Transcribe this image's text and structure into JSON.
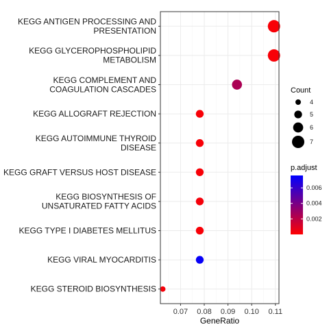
{
  "chart_data": {
    "type": "scatter",
    "xlabel": "GeneRatio",
    "xlim": [
      0.0615,
      0.1115
    ],
    "xticks": [
      "0.07",
      "0.08",
      "0.09",
      "0.10",
      "0.11"
    ],
    "xtick_values": [
      0.07,
      0.08,
      0.09,
      0.1,
      0.11
    ],
    "grid": true,
    "categories": [
      [
        "KEGG ANTIGEN PROCESSING AND",
        "PRESENTATION"
      ],
      [
        "KEGG GLYCEROPHOSPHOLIPID",
        "METABOLISM"
      ],
      [
        "KEGG COMPLEMENT AND",
        "COAGULATION CASCADES"
      ],
      [
        "KEGG ALLOGRAFT REJECTION"
      ],
      [
        "KEGG AUTOIMMUNE THYROID",
        "DISEASE"
      ],
      [
        "KEGG GRAFT VERSUS HOST DISEASE"
      ],
      [
        "KEGG BIOSYNTHESIS OF",
        "UNSATURATED FATTY ACIDS"
      ],
      [
        "KEGG TYPE I DIABETES MELLITUS"
      ],
      [
        "KEGG VIRAL MYOCARDITIS"
      ],
      [
        "KEGG STEROID BIOSYNTHESIS"
      ]
    ],
    "points": [
      {
        "gene_ratio": 0.1094,
        "count": 7,
        "p_adjust": 0.0002
      },
      {
        "gene_ratio": 0.1094,
        "count": 7,
        "p_adjust": 0.0002
      },
      {
        "gene_ratio": 0.0938,
        "count": 6,
        "p_adjust": 0.0025
      },
      {
        "gene_ratio": 0.0781,
        "count": 5,
        "p_adjust": 0.0002
      },
      {
        "gene_ratio": 0.0781,
        "count": 5,
        "p_adjust": 0.0002
      },
      {
        "gene_ratio": 0.0781,
        "count": 5,
        "p_adjust": 0.0002
      },
      {
        "gene_ratio": 0.0781,
        "count": 5,
        "p_adjust": 0.0003
      },
      {
        "gene_ratio": 0.0781,
        "count": 5,
        "p_adjust": 0.0002
      },
      {
        "gene_ratio": 0.0781,
        "count": 5,
        "p_adjust": 0.0074
      },
      {
        "gene_ratio": 0.0625,
        "count": 4,
        "p_adjust": 0.0003
      }
    ],
    "legend_size": {
      "title": "Count",
      "values": [
        4,
        5,
        6,
        7
      ],
      "labels": [
        "4",
        "5",
        "6",
        "7"
      ]
    },
    "legend_color": {
      "title": "p.adjust",
      "range": [
        0,
        0.0076
      ],
      "tick_values": [
        0.002,
        0.004,
        0.006
      ],
      "tick_labels": [
        "0.002",
        "0.004",
        "0.006"
      ],
      "low_color": "#ff0000",
      "high_color": "#0000ff"
    },
    "colors": {
      "panel_border": "#333333",
      "grid_major": "#ebebeb",
      "grid_minor": "#f5f5f5"
    },
    "legend_placement": "right"
  }
}
